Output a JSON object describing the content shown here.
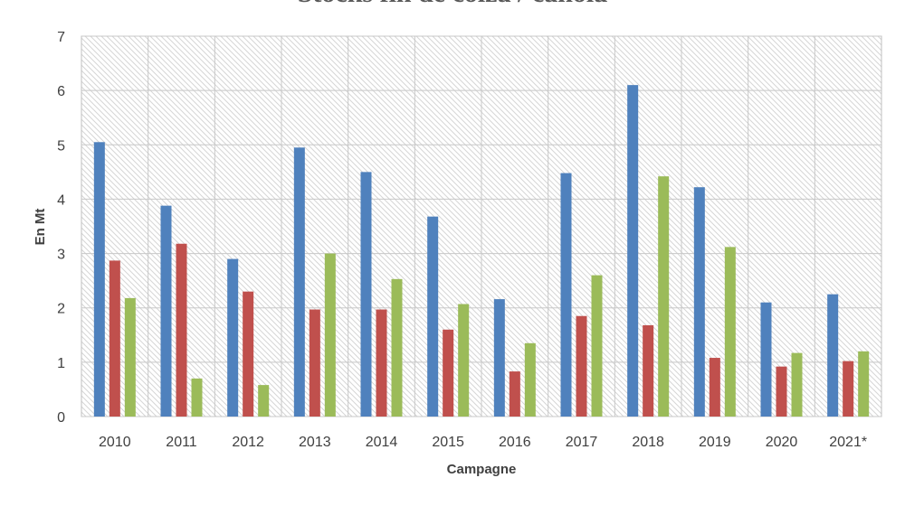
{
  "chart_data": {
    "type": "bar",
    "title": "Stocks fin de colza / canola",
    "xlabel": "Campagne",
    "ylabel": "En Mt",
    "ylim": [
      0,
      7
    ],
    "yticks": [
      "0",
      "1",
      "2",
      "3",
      "4",
      "5",
      "6",
      "7"
    ],
    "categories": [
      "2010",
      "2011",
      "2012",
      "2013",
      "2014",
      "2015",
      "2016",
      "2017",
      "2018",
      "2019",
      "2020",
      "2021*"
    ],
    "series": [
      {
        "color": "#4f81bd",
        "values": [
          5.05,
          3.88,
          2.9,
          4.95,
          4.5,
          3.68,
          2.16,
          4.48,
          6.1,
          4.22,
          2.1,
          2.25
        ]
      },
      {
        "color": "#c0504d",
        "values": [
          2.87,
          3.18,
          2.3,
          1.97,
          1.97,
          1.6,
          0.83,
          1.85,
          1.68,
          1.08,
          0.92,
          1.02
        ]
      },
      {
        "color": "#9bbb59",
        "values": [
          2.18,
          0.7,
          0.58,
          3.0,
          2.53,
          2.07,
          1.35,
          2.6,
          4.42,
          3.12,
          1.17,
          1.2
        ]
      }
    ],
    "grid": true,
    "legend": "none"
  }
}
